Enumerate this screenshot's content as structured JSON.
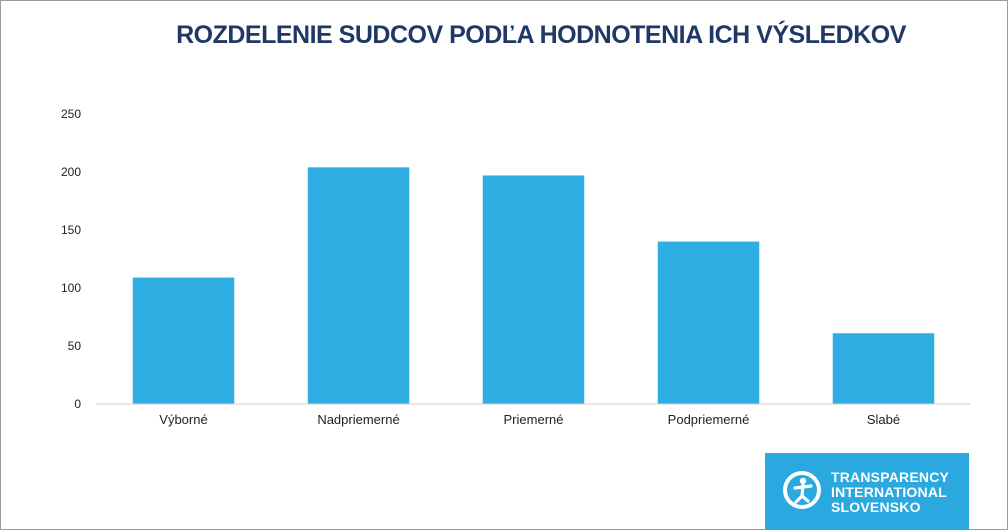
{
  "chart_data": {
    "type": "bar",
    "title": "ROZDELENIE SUDCOV PODĽA HODNOTENIA ICH VÝSLEDKOV",
    "xlabel": "",
    "ylabel": "",
    "categories": [
      "Výborné",
      "Nadpriemerné",
      "Priemerné",
      "Podpriemerné",
      "Slabé"
    ],
    "values": [
      109,
      204,
      197,
      140,
      61
    ],
    "ylim": [
      0,
      250
    ],
    "yticks": [
      0,
      50,
      100,
      150,
      200,
      250
    ],
    "grid": false,
    "legend": "none",
    "bar_color": "#2eaee3"
  },
  "logo": {
    "line1": "TRANSPARENCY",
    "line2": "INTERNATIONAL",
    "line3": "SLOVENSKO",
    "icon": "ti-globe-figure-icon",
    "color": "#2aa8e0"
  }
}
